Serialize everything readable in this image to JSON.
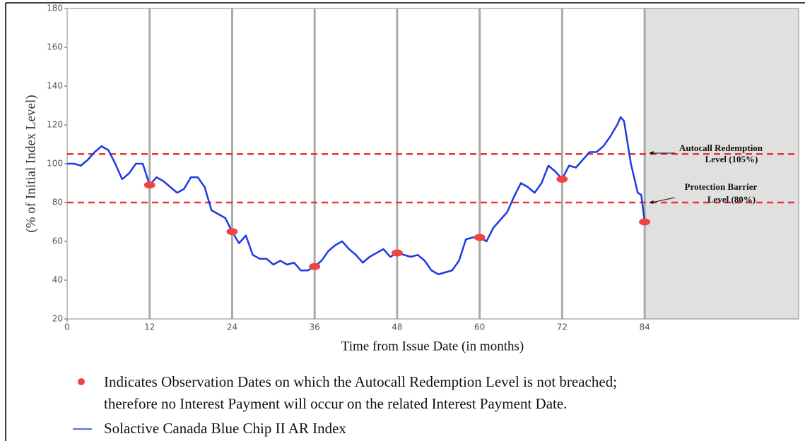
{
  "chart_data": {
    "type": "line",
    "xlabel": "Time from Issue Date (in months)",
    "ylabel": "(% of Initial Index Level)",
    "xlim": [
      0,
      106.4
    ],
    "ylim": [
      20,
      180
    ],
    "xticks": [
      0,
      12,
      24,
      36,
      48,
      60,
      72,
      84
    ],
    "yticks": [
      20,
      40,
      60,
      80,
      100,
      120,
      140,
      160,
      180
    ],
    "grid": "x",
    "shaded_from": 84,
    "shade_color": "#e0e0e0",
    "hlines": [
      {
        "value": 105,
        "label": "Autocall Redemption\nLevel (105%)",
        "color": "#ee3333"
      },
      {
        "value": 80,
        "label": "Protection Barrier\nLevel (80%)",
        "color": "#ee3333"
      }
    ],
    "series": [
      {
        "name": "Solactive Canada Blue Chip II AR Index",
        "color": "#1f3be0",
        "x": [
          0,
          1,
          2,
          3,
          4,
          5,
          6,
          7,
          8,
          9,
          10,
          11,
          12,
          13,
          14,
          15,
          16,
          17,
          18,
          19,
          20,
          21,
          22,
          23,
          24,
          25,
          26,
          27,
          28,
          29,
          30,
          31,
          32,
          33,
          34,
          35,
          36,
          37,
          38,
          39,
          40,
          41,
          42,
          43,
          44,
          45,
          46,
          47,
          48,
          49,
          50,
          51,
          52,
          53,
          54,
          55,
          56,
          57,
          58,
          59,
          60,
          61,
          62,
          63,
          64,
          65,
          66,
          67,
          68,
          69,
          70,
          71,
          72,
          73,
          74,
          75,
          76,
          77,
          78,
          79,
          80,
          80.5,
          81,
          82,
          83,
          83.5,
          84
        ],
        "values": [
          100,
          100,
          99,
          102,
          106,
          109,
          107,
          100,
          92,
          95,
          100,
          100,
          89,
          93,
          91,
          88,
          85,
          87,
          93,
          93,
          88,
          76,
          74,
          72,
          65,
          59,
          63,
          53,
          51,
          51,
          48,
          50,
          48,
          49,
          45,
          45,
          47,
          50,
          55,
          58,
          60,
          56,
          53,
          49,
          52,
          54,
          56,
          52,
          54,
          53,
          52,
          53,
          50,
          45,
          43,
          44,
          45,
          50,
          61,
          62,
          62,
          60,
          67,
          71,
          75,
          83,
          90,
          88,
          85,
          90,
          99,
          96,
          92,
          99,
          98,
          102,
          106,
          106,
          109,
          114,
          120,
          124,
          122,
          100,
          85,
          84,
          70
        ]
      },
      {
        "name": "Indicates Observation Dates on which the Autocall Redemption Level is not breached;\ntherefore no Interest Payment will occur on the related Interest Payment Date.",
        "color": "#ee4444",
        "x": [
          12,
          24,
          36,
          48,
          60,
          72,
          84
        ],
        "values": [
          89,
          65,
          47,
          54,
          62,
          92,
          70
        ]
      }
    ]
  }
}
